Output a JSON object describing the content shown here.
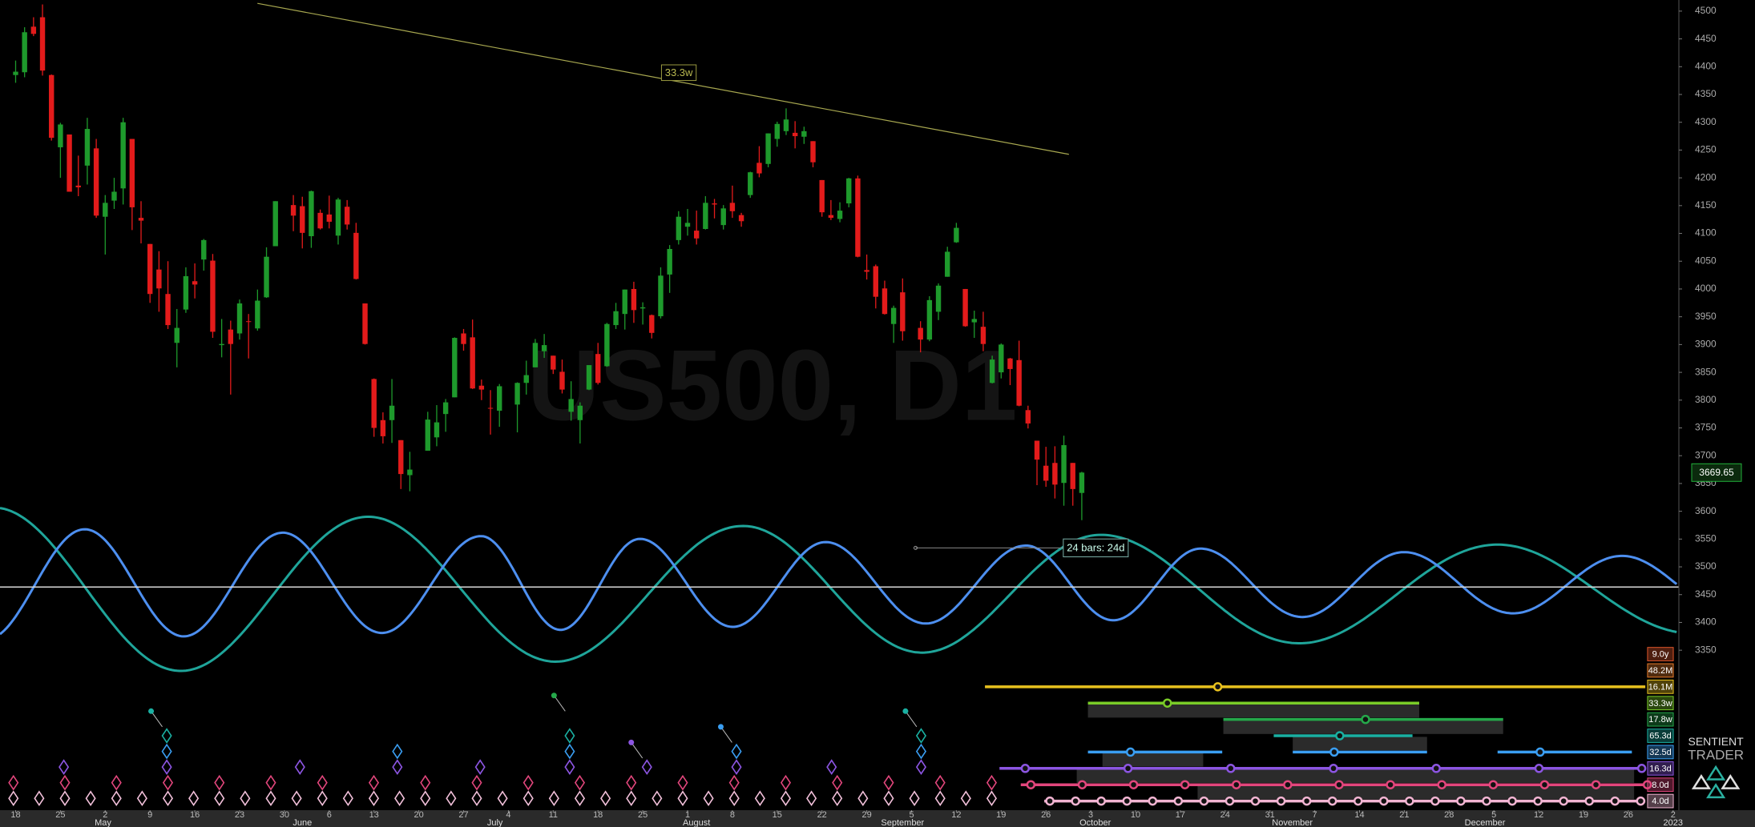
{
  "chart_data": {
    "type": "candlestick",
    "watermark": "US500, D1",
    "x_ticks": [
      "18",
      "25",
      "2",
      "9",
      "16",
      "23",
      "30",
      "6",
      "13",
      "20",
      "27",
      "4",
      "11",
      "18",
      "25",
      "1",
      "8",
      "15",
      "22",
      "29",
      "5",
      "12",
      "19",
      "26",
      "3",
      "10",
      "17",
      "24",
      "31",
      "7",
      "14",
      "21",
      "28",
      "5",
      "12",
      "19",
      "26",
      "2"
    ],
    "months": [
      "May",
      "June",
      "July",
      "August",
      "September",
      "October",
      "November",
      "December",
      "2023"
    ],
    "open": [
      4385,
      4390,
      4472,
      4489,
      4385,
      4255,
      4278,
      4186,
      4222,
      4253,
      4130,
      4159,
      4181,
      4270,
      4128,
      4081,
      4035,
      3991,
      3903,
      3963,
      4014,
      4053,
      4051,
      3899,
      3927,
      3920,
      3942,
      3929,
      3985,
      4077,
      null,
      4151,
      4149,
      4095,
      4137,
      4134,
      4096,
      4148,
      4101,
      3974,
      3838,
      3764,
      3764,
      3728,
      3665,
      null,
      3709,
      3733,
      3775,
      3805,
      3920,
      3913,
      3826,
      3786,
      3781,
      null,
      3792,
      3831,
      3859,
      3888,
      3880,
      3851,
      3779,
      3764,
      3819,
      3883,
      3861,
      3935,
      3955,
      4000,
      3965,
      3953,
      3951,
      4026,
      4088,
      4112,
      4105,
      4108,
      4154,
      4115,
      4155,
      4133,
      4169,
      4227,
      4225,
      4270,
      4284,
      4281,
      4274,
      4266,
      4196,
      4133,
      4126,
      4154,
      4199,
      4034,
      4041,
      4001,
      3937,
      3994,
      null,
      3930,
      3909,
      3959,
      4022,
      4084,
      4000,
      3940,
      3932,
      3831,
      3850,
      3875,
      3872,
      3782,
      3727,
      3682,
      3687,
      3651,
      3687,
      3633
    ],
    "high": [
      4411,
      4471,
      4489,
      4512,
      4386,
      4299,
      4278,
      4240,
      4308,
      4270,
      4169,
      4200,
      4308,
      4270,
      4158,
      4081,
      4068,
      4050,
      3964,
      4039,
      4046,
      4090,
      4063,
      3946,
      3943,
      3981,
      3955,
      3999,
      4075,
      4158,
      null,
      4169,
      4166,
      4177,
      4143,
      4168,
      4164,
      4160,
      4119,
      3974,
      3839,
      3778,
      3838,
      3728,
      3707,
      null,
      3779,
      3791,
      3802,
      3913,
      3928,
      3945,
      3837,
      3818,
      3829,
      null,
      3832,
      3871,
      3910,
      3919,
      3880,
      3873,
      3834,
      3796,
      3863,
      3903,
      3939,
      3975,
      3999,
      4013,
      3976,
      3954,
      4039,
      4079,
      4140,
      4144,
      4141,
      4167,
      4162,
      4151,
      4186,
      4137,
      4211,
      4257,
      4280,
      4301,
      4325,
      4302,
      4292,
      4266,
      4196,
      4160,
      4156,
      4200,
      4204,
      4062,
      4044,
      4015,
      3970,
      4019,
      null,
      3942,
      3987,
      4010,
      4076,
      4119,
      4000,
      3961,
      3959,
      3880,
      3902,
      3876,
      3907,
      3790,
      3727,
      3716,
      3717,
      3736,
      3687,
      3671
    ],
    "low": [
      4371,
      4381,
      4455,
      4384,
      4267,
      4200,
      4175,
      4167,
      4188,
      4128,
      4062,
      4144,
      4152,
      4106,
      4082,
      3975,
      3959,
      3928,
      3859,
      3957,
      3983,
      4033,
      3912,
      3877,
      3810,
      3909,
      3875,
      3925,
      3984,
      4077,
      null,
      4104,
      4073,
      4074,
      4107,
      4109,
      4080,
      4107,
      4017,
      3900,
      3734,
      3722,
      3723,
      3640,
      3636,
      null,
      3709,
      3717,
      3743,
      3805,
      3889,
      3820,
      3800,
      3738,
      3752,
      null,
      3742,
      3810,
      3859,
      3876,
      3847,
      3812,
      3763,
      3722,
      3818,
      3828,
      3860,
      3928,
      3927,
      3939,
      3936,
      3911,
      3947,
      3993,
      4080,
      4096,
      4080,
      4107,
      4127,
      4107,
      4128,
      4112,
      4164,
      4201,
      4219,
      4256,
      4277,
      4253,
      4261,
      4219,
      4130,
      4124,
      4120,
      4147,
      4057,
      4017,
      3965,
      3954,
      3903,
      3907,
      null,
      3886,
      3906,
      3944,
      4022,
      4083,
      3932,
      3912,
      3888,
      3830,
      3839,
      3827,
      3789,
      3749,
      3647,
      3644,
      3623,
      3610,
      3610,
      3584
    ],
    "close": [
      4391,
      4462,
      4459,
      4393,
      4272,
      4296,
      4175,
      4183,
      4288,
      4132,
      4155,
      4175,
      4300,
      4147,
      4123,
      3991,
      4001,
      3935,
      3930,
      4023,
      4008,
      4088,
      3923,
      3901,
      3901,
      3974,
      3941,
      3979,
      4058,
      4158,
      null,
      4132,
      4101,
      4176,
      4109,
      4121,
      4161,
      4116,
      4018,
      3901,
      3750,
      3735,
      3790,
      3667,
      3675,
      null,
      3765,
      3760,
      3796,
      3912,
      3901,
      3821,
      3819,
      3785,
      3825,
      null,
      3831,
      3845,
      3903,
      3899,
      3855,
      3819,
      3802,
      3790,
      3863,
      3831,
      3937,
      3960,
      3999,
      3962,
      3967,
      3921,
      4024,
      4072,
      4130,
      4119,
      4091,
      4155,
      4152,
      4145,
      4140,
      4122,
      4210,
      4208,
      4280,
      4297,
      4305,
      4275,
      4284,
      4228,
      4138,
      4128,
      4141,
      4199,
      4058,
      4031,
      3986,
      3955,
      3966,
      3924,
      null,
      3909,
      3980,
      4006,
      4067,
      4110,
      3933,
      3946,
      3901,
      3873,
      3900,
      3856,
      3790,
      3758,
      3693,
      3655,
      3648,
      3719,
      3640,
      3669.65
    ],
    "up_color": "#1e9a2c",
    "down_color": "#e31b1b",
    "ylim": [
      3065,
      4520
    ],
    "yticks": [
      3350,
      3400,
      3450,
      3500,
      3550,
      3600,
      3650,
      3700,
      3750,
      3800,
      3850,
      3900,
      3950,
      4000,
      4050,
      4100,
      4150,
      4200,
      4250,
      4300,
      4350,
      4400,
      4450,
      4500
    ],
    "last_price": 3669.65,
    "annotations": {
      "trendline_label": "33.3w",
      "bars_label": "24 bars: 24d"
    },
    "cycles": [
      {
        "name": "9.0y",
        "color": "#e0552a"
      },
      {
        "name": "48.2M",
        "color": "#e57a2a"
      },
      {
        "name": "16.1M",
        "color": "#e8c11e"
      },
      {
        "name": "33.3w",
        "color": "#7acc28"
      },
      {
        "name": "17.8w",
        "color": "#25a84a"
      },
      {
        "name": "65.3d",
        "color": "#1ab0a2"
      },
      {
        "name": "32.5d",
        "color": "#3a9ef2"
      },
      {
        "name": "16.3d",
        "color": "#8c55e2"
      },
      {
        "name": "8.0d",
        "color": "#e2467c"
      },
      {
        "name": "4.0d",
        "color": "#f2b4d2"
      }
    ]
  },
  "branding": {
    "line1": "SENTIENT",
    "line2": "TRADER"
  }
}
